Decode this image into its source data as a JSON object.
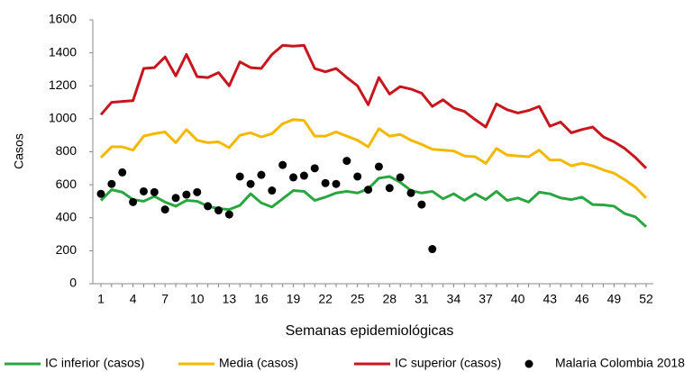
{
  "chart_data": {
    "type": "line",
    "x_label": "Semanas epidemiológicas",
    "y_label": "Casos",
    "categories": [
      "1",
      null,
      null,
      "4",
      null,
      null,
      "7",
      null,
      null,
      "10",
      null,
      null,
      "13",
      null,
      null,
      "16",
      null,
      null,
      "19",
      null,
      null,
      "22",
      null,
      null,
      "25",
      null,
      null,
      "28",
      null,
      null,
      "31",
      null,
      null,
      "34",
      null,
      null,
      "37",
      null,
      null,
      "40",
      null,
      null,
      "43",
      null,
      null,
      "46",
      null,
      null,
      "49",
      null,
      null,
      "52"
    ],
    "ylim": [
      0,
      1600
    ],
    "yticks": [
      0,
      200,
      400,
      600,
      800,
      1000,
      1200,
      1400,
      1600
    ],
    "grid": false,
    "legend": "bottom",
    "series": [
      {
        "name": "IC inferior (casos)",
        "color": "#2aa640",
        "type": "line",
        "values": [
          505,
          570,
          555,
          510,
          500,
          530,
          495,
          470,
          505,
          500,
          470,
          455,
          450,
          475,
          545,
          490,
          465,
          515,
          565,
          560,
          505,
          525,
          550,
          560,
          550,
          575,
          640,
          650,
          615,
          565,
          550,
          560,
          515,
          545,
          505,
          545,
          510,
          560,
          505,
          520,
          495,
          555,
          545,
          520,
          510,
          525,
          480,
          478,
          470,
          425,
          405,
          345
        ]
      },
      {
        "name": "Media (casos)",
        "color": "#f5b800",
        "type": "line",
        "values": [
          765,
          830,
          830,
          810,
          895,
          910,
          920,
          855,
          935,
          870,
          855,
          860,
          825,
          900,
          915,
          890,
          910,
          970,
          995,
          990,
          895,
          895,
          920,
          895,
          870,
          830,
          940,
          895,
          905,
          870,
          845,
          815,
          810,
          805,
          775,
          770,
          730,
          820,
          780,
          775,
          770,
          810,
          750,
          750,
          715,
          730,
          715,
          690,
          670,
          630,
          585,
          520
        ]
      },
      {
        "name": "IC superior (casos)",
        "color": "#c8161d",
        "type": "line",
        "values": [
          1025,
          1100,
          1105,
          1110,
          1305,
          1310,
          1375,
          1260,
          1390,
          1255,
          1250,
          1280,
          1200,
          1345,
          1310,
          1305,
          1390,
          1445,
          1440,
          1445,
          1305,
          1285,
          1305,
          1250,
          1200,
          1085,
          1250,
          1150,
          1195,
          1180,
          1155,
          1075,
          1115,
          1065,
          1045,
          995,
          950,
          1090,
          1055,
          1035,
          1050,
          1075,
          955,
          980,
          915,
          935,
          950,
          890,
          860,
          820,
          765,
          700
        ]
      },
      {
        "name": "Malaria Colombia 2018",
        "color": "#000000",
        "type": "scatter",
        "values": [
          545,
          605,
          675,
          495,
          560,
          555,
          450,
          520,
          540,
          555,
          470,
          445,
          420,
          650,
          605,
          660,
          565,
          720,
          645,
          655,
          700,
          610,
          605,
          745,
          650,
          570,
          710,
          580,
          645,
          550,
          480,
          210
        ]
      }
    ]
  }
}
